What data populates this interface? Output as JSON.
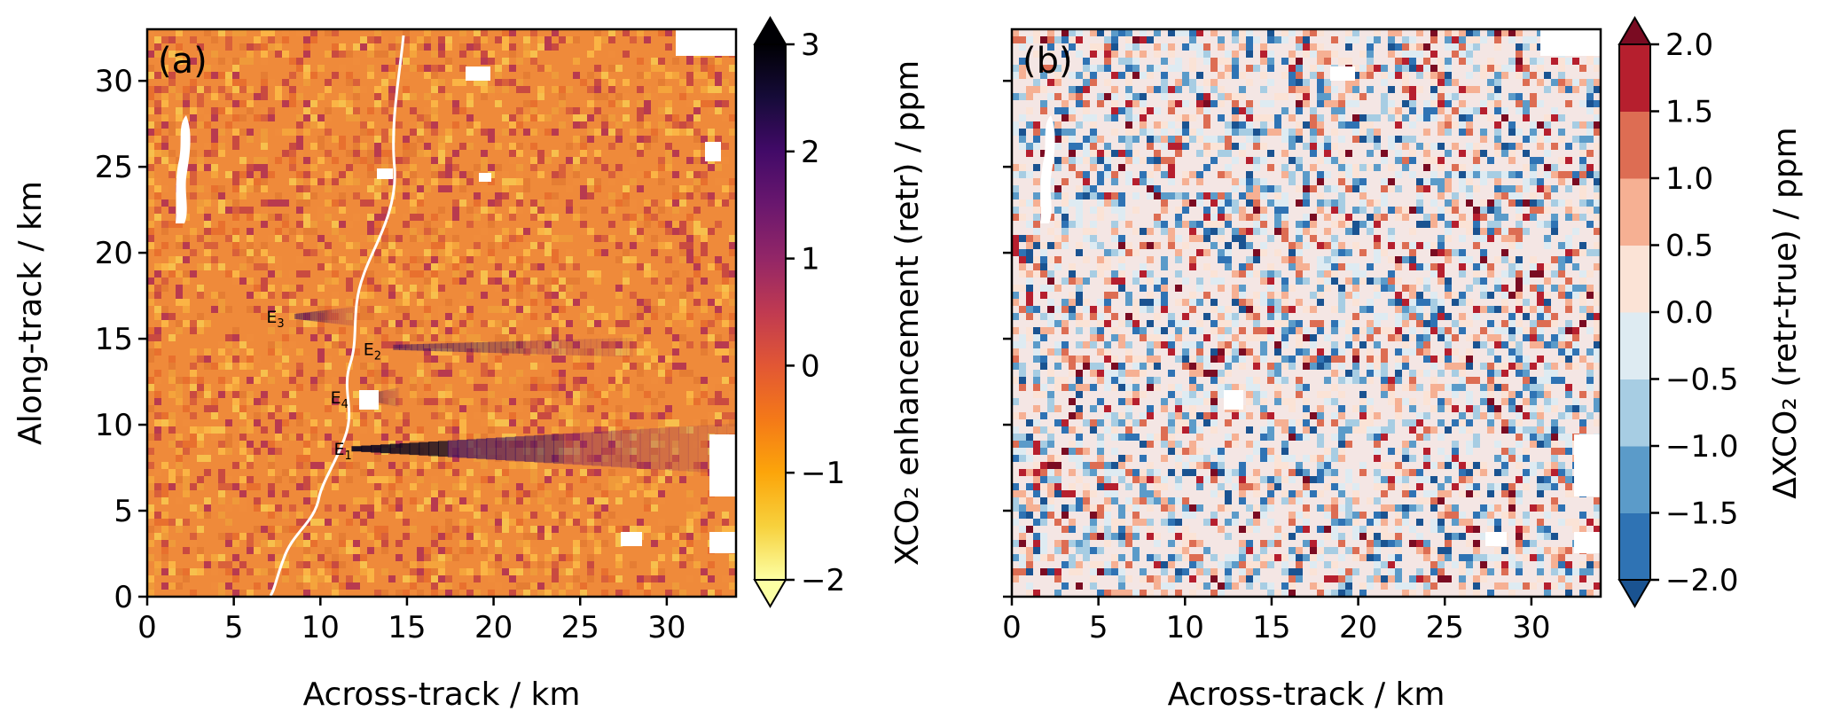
{
  "chart_data": [
    {
      "type": "heatmap",
      "panel_label": "(a)",
      "xlabel": "Across-track / km",
      "ylabel": "Along-track / km",
      "xlim": [
        0,
        34
      ],
      "ylim": [
        0,
        33
      ],
      "xticks": [
        0,
        5,
        10,
        15,
        20,
        25,
        30
      ],
      "yticks": [
        0,
        5,
        10,
        15,
        20,
        25,
        30
      ],
      "colorbar": {
        "label": "XCO₂ enhancement (retr) / ppm",
        "range": [
          -2,
          3
        ],
        "ticks": [
          -2,
          -1,
          0,
          1,
          2,
          3
        ],
        "tick_labels": [
          "−2",
          "−1",
          "0",
          "1",
          "2",
          "3"
        ],
        "colormap": "inferno_r",
        "extend": "both"
      },
      "annotations": [
        {
          "base": "E",
          "sub": "1",
          "x": 11.3,
          "y": 8.6
        },
        {
          "base": "E",
          "sub": "2",
          "x": 13.0,
          "y": 14.4
        },
        {
          "base": "E",
          "sub": "3",
          "x": 7.4,
          "y": 16.3
        },
        {
          "base": "E",
          "sub": "4",
          "x": 11.1,
          "y": 11.6
        }
      ],
      "plumes": [
        {
          "name": "E1",
          "x_start": 11.8,
          "x_end": 34,
          "y": 8.6,
          "peak_ppm": 3.0
        },
        {
          "name": "E2",
          "x_start": 14.2,
          "x_end": 28,
          "y": 14.5,
          "peak_ppm": 1.6
        },
        {
          "name": "E3",
          "x_start": 8.5,
          "x_end": 12.0,
          "y": 16.3,
          "peak_ppm": 1.3
        },
        {
          "name": "E4",
          "x_start": 12.5,
          "x_end": 14.5,
          "y": 11.6,
          "peak_ppm": 0.8
        }
      ]
    },
    {
      "type": "heatmap",
      "panel_label": "(b)",
      "xlabel": "Across-track / km",
      "ylabel": "",
      "xlim": [
        0,
        34
      ],
      "ylim": [
        0,
        33
      ],
      "xticks": [
        0,
        5,
        10,
        15,
        20,
        25,
        30
      ],
      "yticks": [
        0,
        5,
        10,
        15,
        20,
        25,
        30
      ],
      "colorbar": {
        "label": "ΔXCO₂ (retr-true) / ppm",
        "range": [
          -2,
          2
        ],
        "ticks": [
          -2.0,
          -1.5,
          -1.0,
          -0.5,
          0.0,
          0.5,
          1.0,
          1.5,
          2.0
        ],
        "tick_labels": [
          "−2.0",
          "−1.5",
          "−1.0",
          "−0.5",
          "0.0",
          "0.5",
          "1.0",
          "1.5",
          "2.0"
        ],
        "colormap": "RdBu_r discrete",
        "levels": [
          "#1a5391",
          "#2f73b4",
          "#5b9bc9",
          "#a7cde3",
          "#deebf2",
          "#fbe3d6",
          "#f6b093",
          "#dd6d53",
          "#b61f2e",
          "#7a0b22"
        ],
        "extend": "both"
      }
    }
  ]
}
